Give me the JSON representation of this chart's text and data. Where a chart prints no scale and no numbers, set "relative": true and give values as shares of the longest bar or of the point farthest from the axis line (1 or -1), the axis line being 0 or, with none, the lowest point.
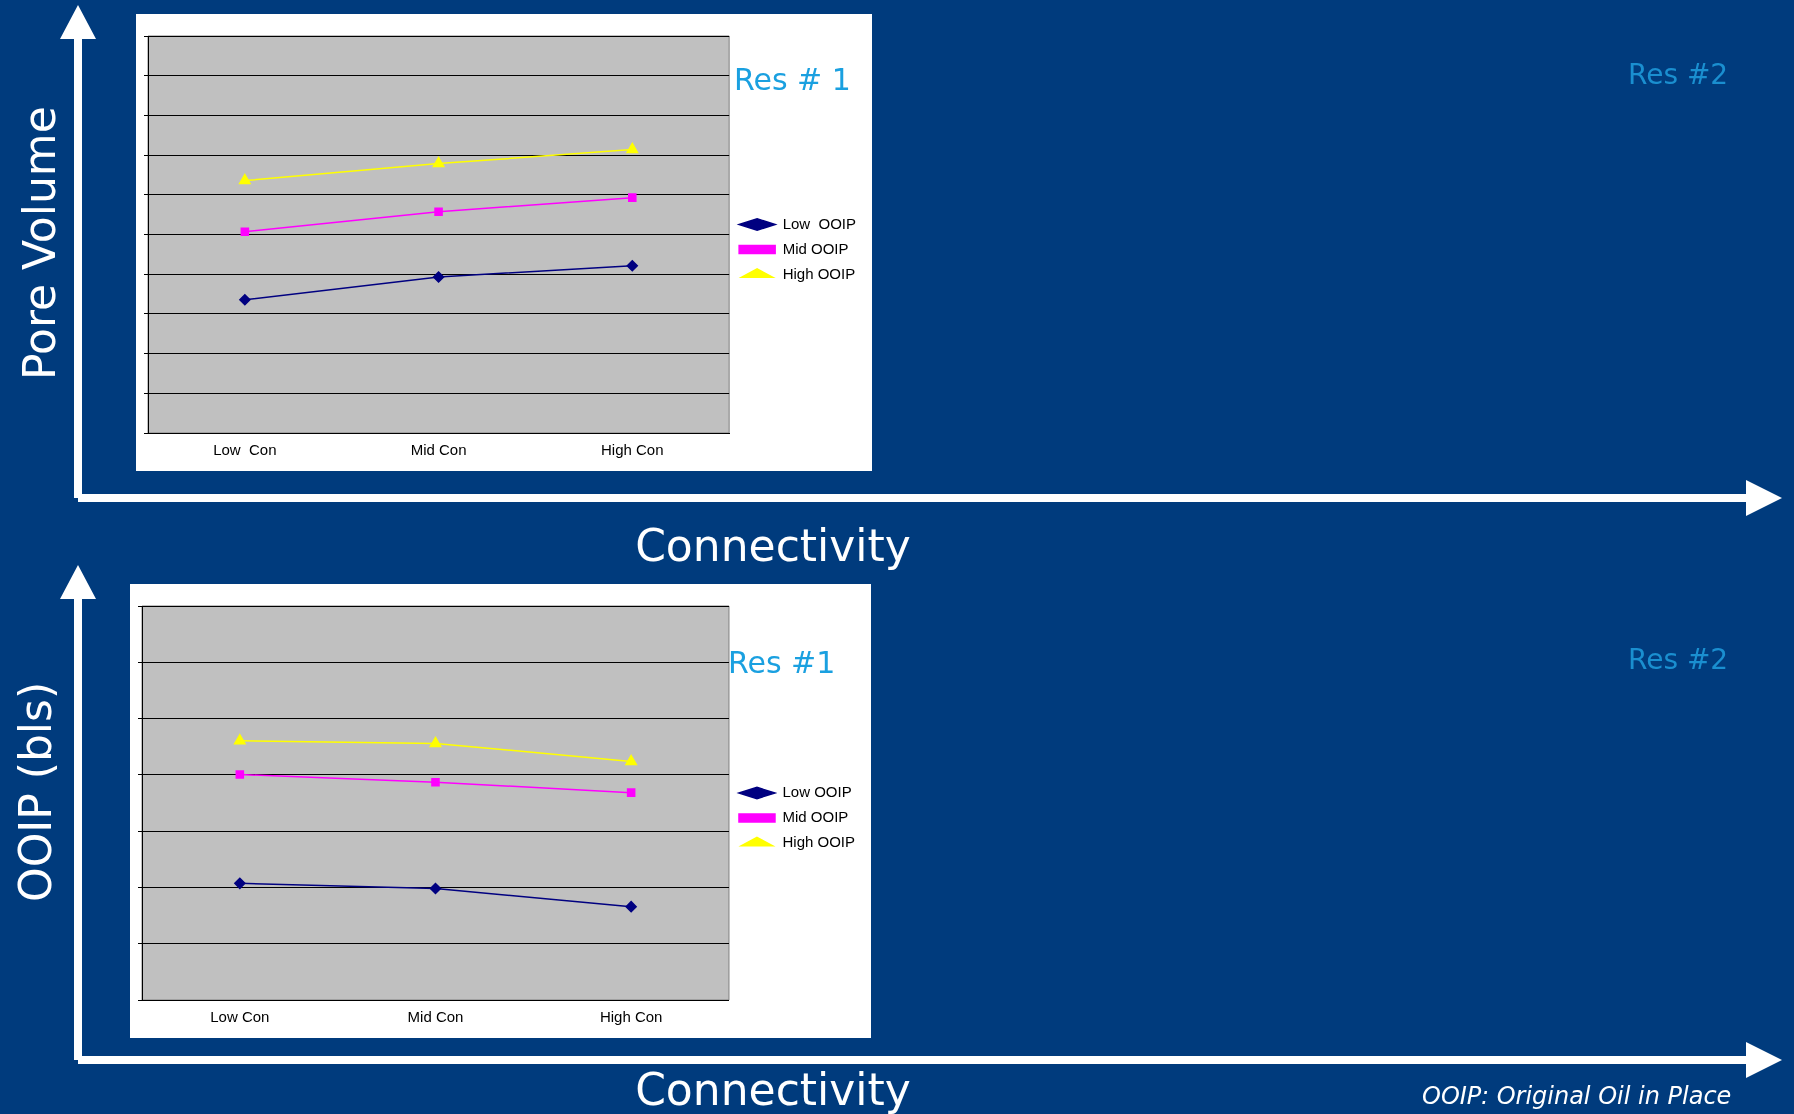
{
  "chart_data": [
    {
      "type": "line",
      "title": "Res # 1",
      "ylabel": "Pore Volume",
      "xlabel": "Connectivity",
      "annotations": [
        "Res #2"
      ],
      "categories": [
        "Low  Con",
        "Mid Con",
        "High Con"
      ],
      "relative": true,
      "grid": "y",
      "legend": "right",
      "series": [
        {
          "name": "Low  OOIP",
          "color": "#000080",
          "marker": "diamond",
          "values": [
            0.47,
            0.55,
            0.59
          ]
        },
        {
          "name": "Mid OOIP",
          "color": "#ff00ff",
          "marker": "square",
          "values": [
            0.71,
            0.78,
            0.83
          ]
        },
        {
          "name": "High OOIP",
          "color": "#ffff00",
          "marker": "triangle",
          "values": [
            0.89,
            0.95,
            1
          ]
        }
      ]
    },
    {
      "type": "line",
      "title": "Res #1",
      "ylabel": "OOIP (bls)",
      "xlabel": "Connectivity",
      "annotations": [
        "Res #2",
        "OOIP: Original Oil in Place"
      ],
      "categories": [
        "Low Con",
        "Mid Con",
        "High Con"
      ],
      "relative": true,
      "grid": "y",
      "legend": "right",
      "series": [
        {
          "name": "Low OOIP",
          "color": "#000080",
          "marker": "diamond",
          "values": [
            0.45,
            0.43,
            0.36
          ]
        },
        {
          "name": "Mid OOIP",
          "color": "#ff00ff",
          "marker": "square",
          "values": [
            0.87,
            0.84,
            0.8
          ]
        },
        {
          "name": "High OOIP",
          "color": "#ffff00",
          "marker": "triangle",
          "values": [
            1,
            0.99,
            0.92
          ]
        }
      ]
    }
  ]
}
